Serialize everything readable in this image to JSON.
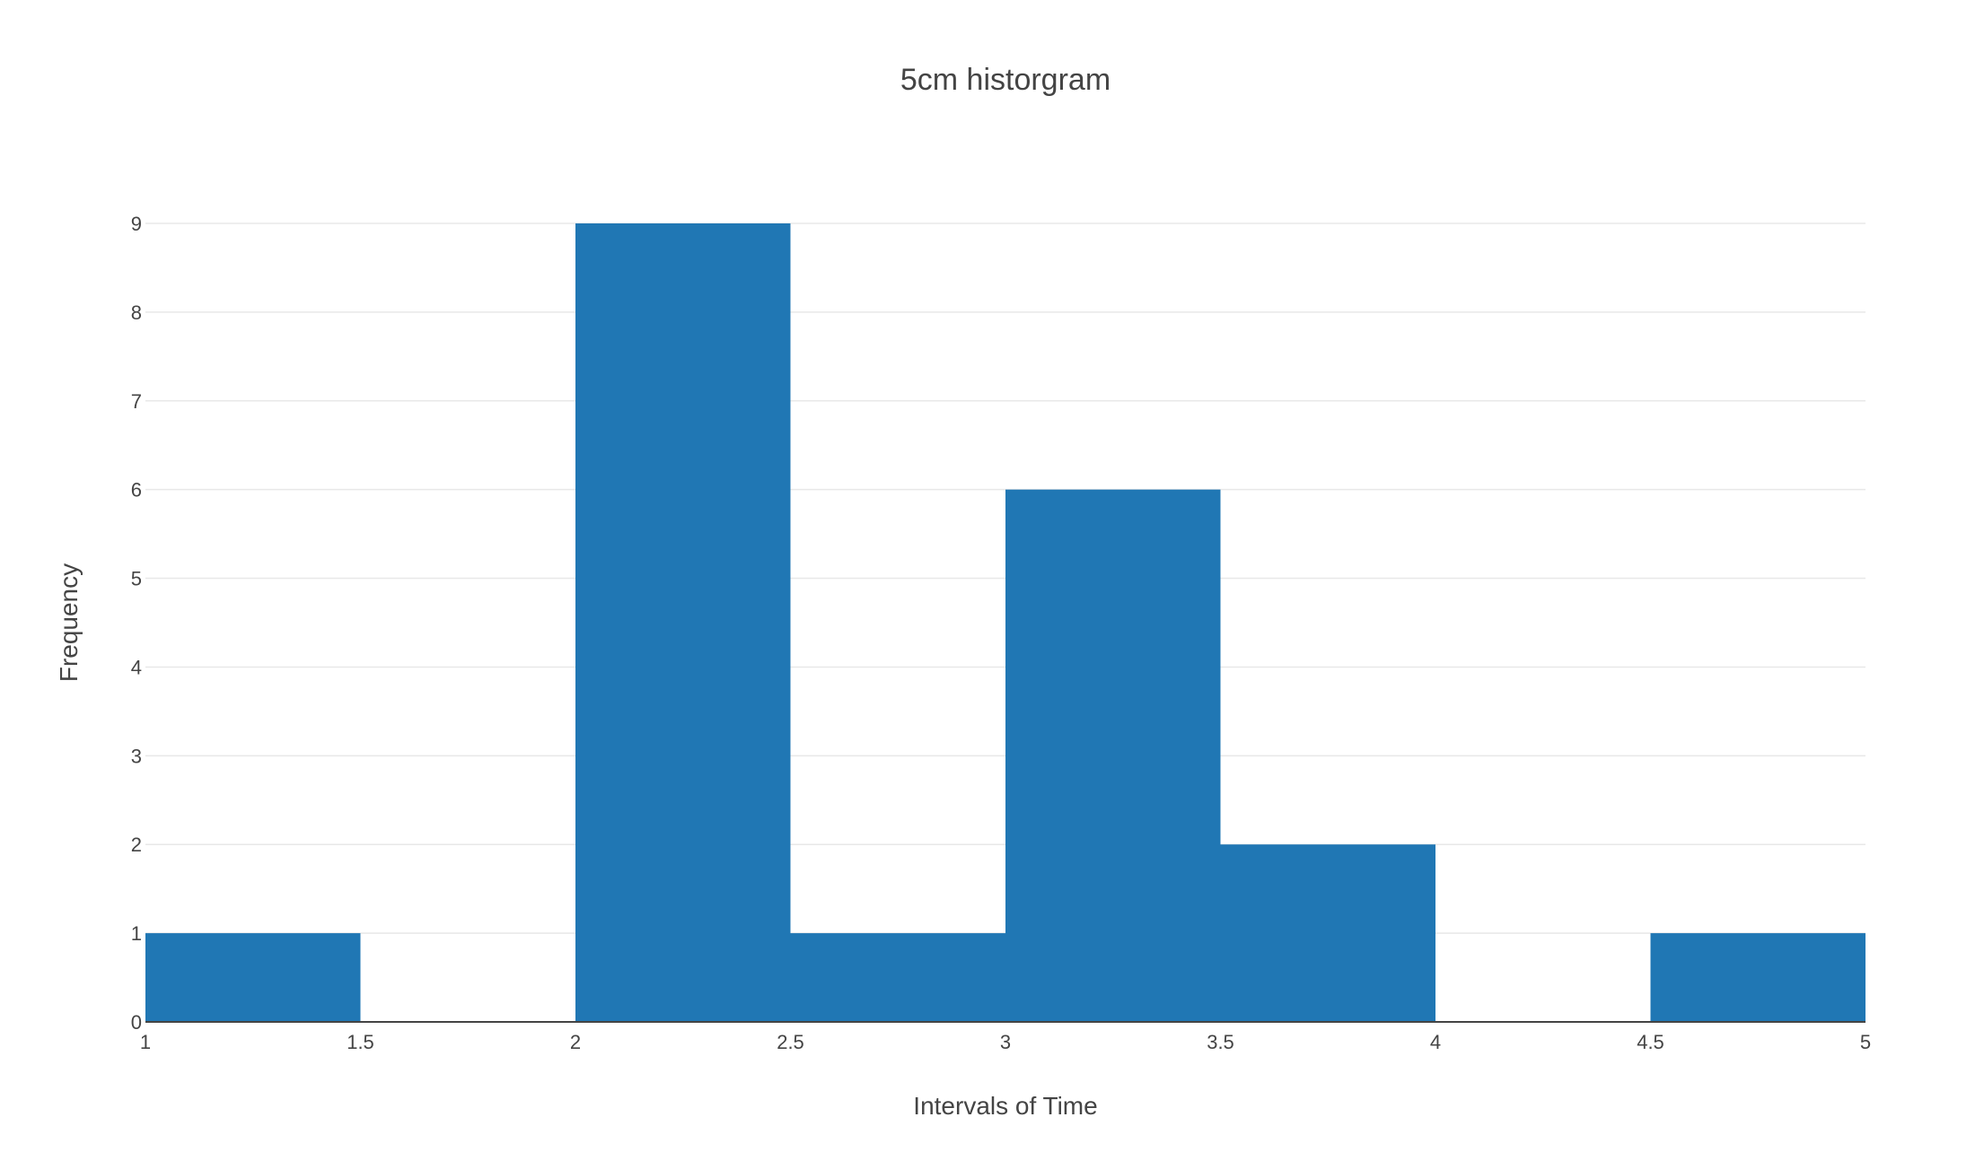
{
  "chart_data": {
    "type": "bar",
    "title": "5cm historgram",
    "xlabel": "Intervals of Time",
    "ylabel": "Frequency",
    "bins": [
      {
        "start": 1.0,
        "end": 1.5,
        "count": 1
      },
      {
        "start": 1.5,
        "end": 2.0,
        "count": 0
      },
      {
        "start": 2.0,
        "end": 2.5,
        "count": 9
      },
      {
        "start": 2.5,
        "end": 3.0,
        "count": 1
      },
      {
        "start": 3.0,
        "end": 3.5,
        "count": 6
      },
      {
        "start": 3.5,
        "end": 4.0,
        "count": 2
      },
      {
        "start": 4.0,
        "end": 4.5,
        "count": 0
      },
      {
        "start": 4.5,
        "end": 5.0,
        "count": 1
      }
    ],
    "xlim": [
      1,
      5
    ],
    "ylim": [
      0,
      9
    ],
    "x_ticks": [
      "1",
      "1.5",
      "2",
      "2.5",
      "3",
      "3.5",
      "4",
      "4.5",
      "5"
    ],
    "y_ticks": [
      "0",
      "1",
      "2",
      "3",
      "4",
      "5",
      "6",
      "7",
      "8",
      "9"
    ],
    "bar_color": "#2077b4",
    "grid": true,
    "legend": false
  }
}
